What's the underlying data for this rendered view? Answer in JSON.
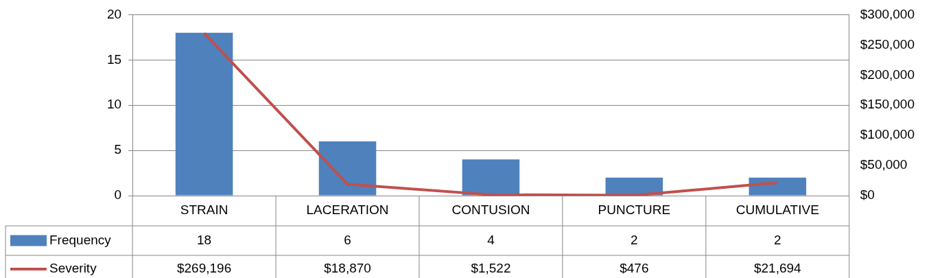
{
  "chart_data": {
    "type": "bar",
    "categories": [
      "STRAIN",
      "LACERATION",
      "CONTUSION",
      "PUNCTURE",
      "CUMULATIVE"
    ],
    "series": [
      {
        "name": "Frequency",
        "color": "#4f81bd",
        "values": [
          18,
          6,
          4,
          2,
          2
        ],
        "value_labels": [
          "18",
          "6",
          "4",
          "2",
          "2"
        ]
      },
      {
        "name": "Severity",
        "type": "line",
        "axis": "y2",
        "color": "#c0504d",
        "values": [
          269196,
          18870,
          1522,
          476,
          21694
        ],
        "value_labels": [
          "$269,196",
          "$18,870",
          "$1,522",
          "$476",
          "$21,694"
        ]
      }
    ],
    "ylim": [
      0,
      20
    ],
    "yticks": [
      0,
      5,
      10,
      15,
      20
    ],
    "y2lim": [
      0,
      300000
    ],
    "y2ticks": [
      {
        "value": 0,
        "label": "$0"
      },
      {
        "value": 50000,
        "label": "$50,000"
      },
      {
        "value": 100000,
        "label": "$100,000"
      },
      {
        "value": 150000,
        "label": "$150,000"
      },
      {
        "value": 200000,
        "label": "$200,000"
      },
      {
        "value": 250000,
        "label": "$250,000"
      },
      {
        "value": 300000,
        "label": "$300,000"
      }
    ],
    "grid": "y",
    "legend": "bottom",
    "marker": "none",
    "line_style": "solid"
  }
}
